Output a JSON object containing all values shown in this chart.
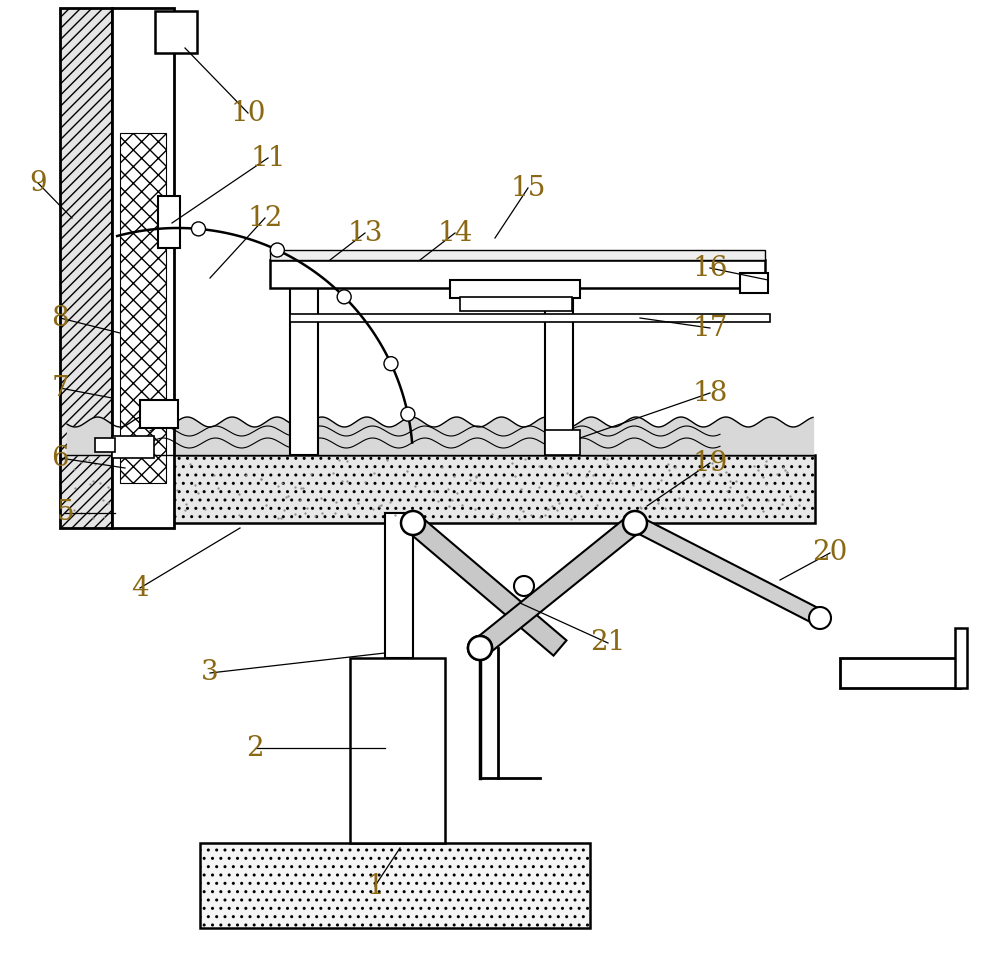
{
  "bg_color": "#ffffff",
  "line_color": "#000000",
  "label_color": "#8B6914",
  "label_fontsize": 20,
  "line_width": 1.5,
  "fig_width": 10.0,
  "fig_height": 9.58,
  "dpi": 100
}
